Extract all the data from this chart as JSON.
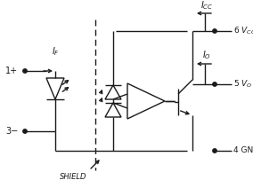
{
  "bg_color": "#ffffff",
  "line_color": "#1a1a1a",
  "text_color": "#1a1a1a",
  "figsize": [
    2.84,
    2.12
  ],
  "dpi": 100
}
